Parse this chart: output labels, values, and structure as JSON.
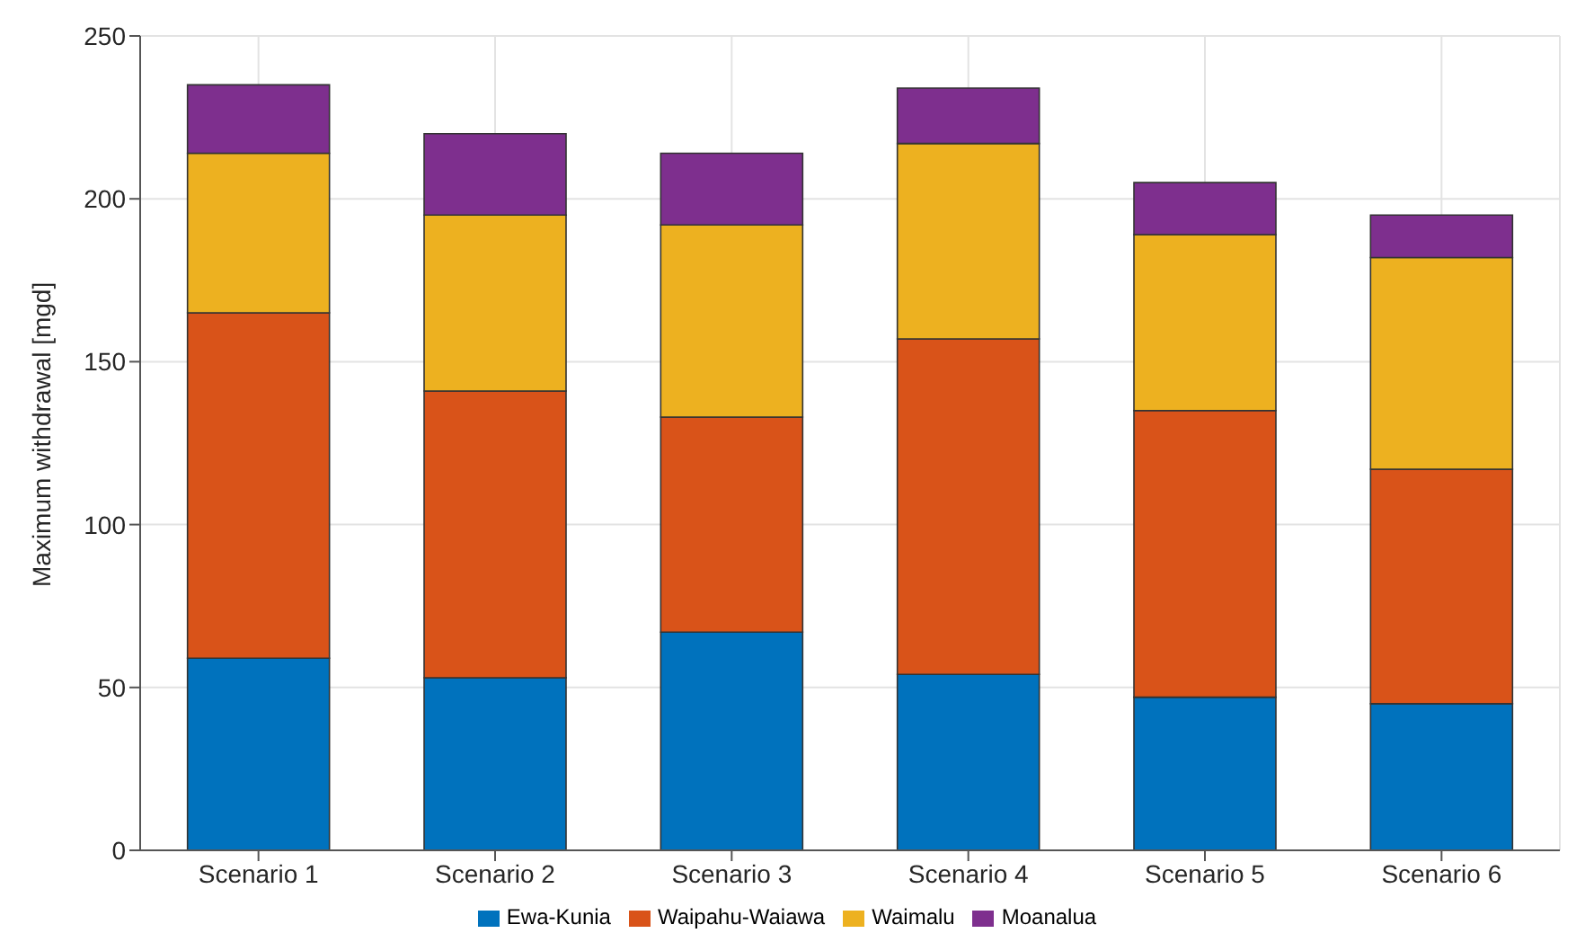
{
  "chart_data": {
    "type": "bar",
    "stacked": true,
    "ylabel": "Maximum withdrawal [mgd]",
    "categories": [
      "Scenario 1",
      "Scenario 2",
      "Scenario 3",
      "Scenario 4",
      "Scenario 5",
      "Scenario 6"
    ],
    "series": [
      {
        "name": "Ewa-Kunia",
        "color": "#0072bd",
        "values": [
          59,
          53,
          67,
          54,
          47,
          45
        ]
      },
      {
        "name": "Waipahu-Waiawa",
        "color": "#d95319",
        "values": [
          106,
          88,
          66,
          103,
          88,
          72
        ]
      },
      {
        "name": "Waimalu",
        "color": "#edb120",
        "values": [
          49,
          54,
          59,
          60,
          54,
          65
        ]
      },
      {
        "name": "Moanalua",
        "color": "#7e2f8e",
        "values": [
          21,
          25,
          22,
          17,
          16,
          13
        ]
      }
    ],
    "ylim": [
      0,
      250
    ],
    "yticks": [
      0,
      50,
      100,
      150,
      200,
      250
    ],
    "grid": true,
    "legend": "bottom"
  }
}
